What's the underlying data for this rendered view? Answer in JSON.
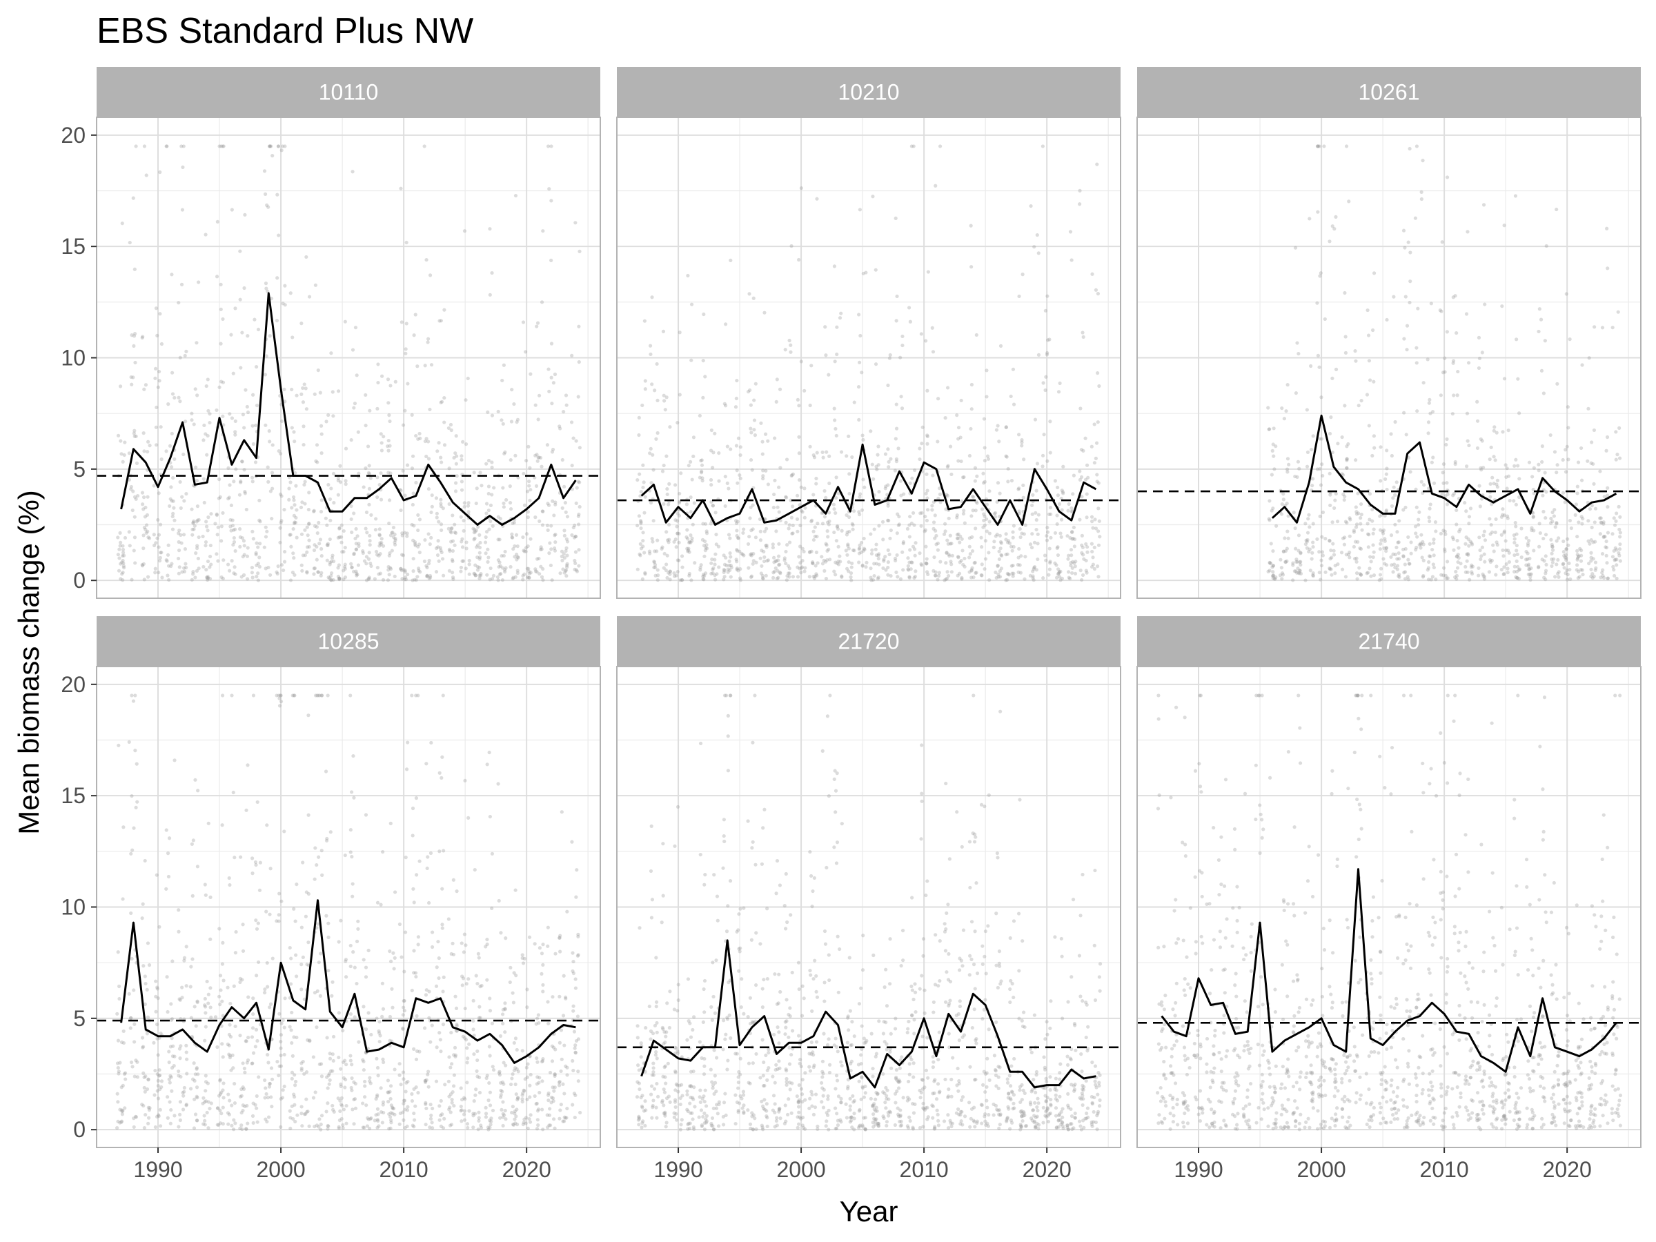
{
  "title": "EBS Standard Plus NW",
  "chart_data": {
    "type": "line",
    "title": "EBS Standard Plus NW",
    "xlabel": "Year",
    "ylabel": "Mean biomass change (%)",
    "xlim": [
      1985,
      2026
    ],
    "ylim": [
      -0.8,
      20.8
    ],
    "x_ticks": [
      1990,
      2000,
      2010,
      2020
    ],
    "y_ticks": [
      0,
      5,
      10,
      15,
      20
    ],
    "grid": true,
    "facet_rows": 2,
    "facet_cols": 3,
    "facets": [
      {
        "name": "10110",
        "mean": 4.7,
        "x": [
          1987,
          1988,
          1989,
          1990,
          1991,
          1992,
          1993,
          1994,
          1995,
          1996,
          1997,
          1998,
          1999,
          2000,
          2001,
          2002,
          2003,
          2004,
          2005,
          2006,
          2007,
          2008,
          2009,
          2010,
          2011,
          2012,
          2013,
          2014,
          2015,
          2016,
          2017,
          2018,
          2019,
          2020,
          2021,
          2022,
          2023,
          2024
        ],
        "y": [
          3.2,
          5.9,
          5.3,
          4.2,
          5.5,
          7.1,
          4.3,
          4.4,
          7.3,
          5.2,
          6.3,
          5.5,
          12.9,
          8.6,
          4.7,
          4.7,
          4.4,
          3.1,
          3.1,
          3.7,
          3.7,
          4.1,
          4.6,
          3.6,
          3.8,
          5.2,
          4.4,
          3.5,
          3.0,
          2.5,
          2.9,
          2.5,
          2.8,
          3.2,
          3.7,
          5.2,
          3.7,
          4.5
        ]
      },
      {
        "name": "10210",
        "mean": 3.6,
        "x": [
          1987,
          1988,
          1989,
          1990,
          1991,
          1992,
          1993,
          1994,
          1995,
          1996,
          1997,
          1998,
          1999,
          2000,
          2001,
          2002,
          2003,
          2004,
          2005,
          2006,
          2007,
          2008,
          2009,
          2010,
          2011,
          2012,
          2013,
          2014,
          2015,
          2016,
          2017,
          2018,
          2019,
          2020,
          2021,
          2022,
          2023,
          2024
        ],
        "y": [
          3.8,
          4.3,
          2.6,
          3.3,
          2.8,
          3.6,
          2.5,
          2.8,
          3.0,
          4.1,
          2.6,
          2.7,
          3.0,
          3.3,
          3.6,
          3.0,
          4.2,
          3.1,
          6.1,
          3.4,
          3.6,
          4.9,
          3.9,
          5.3,
          5.0,
          3.2,
          3.3,
          4.1,
          3.3,
          2.5,
          3.6,
          2.5,
          5.0,
          4.1,
          3.1,
          2.7,
          4.4,
          4.1
        ]
      },
      {
        "name": "10261",
        "mean": 4.0,
        "x": [
          1996,
          1997,
          1998,
          1999,
          2000,
          2001,
          2002,
          2003,
          2004,
          2005,
          2006,
          2007,
          2008,
          2009,
          2010,
          2011,
          2012,
          2013,
          2014,
          2015,
          2016,
          2017,
          2018,
          2019,
          2020,
          2021,
          2022,
          2023,
          2024
        ],
        "y": [
          2.8,
          3.3,
          2.6,
          4.4,
          7.4,
          5.1,
          4.4,
          4.1,
          3.4,
          3.0,
          3.0,
          5.7,
          6.2,
          3.9,
          3.7,
          3.3,
          4.3,
          3.8,
          3.5,
          3.8,
          4.1,
          3.0,
          4.6,
          4.0,
          3.6,
          3.1,
          3.5,
          3.6,
          3.9
        ]
      },
      {
        "name": "10285",
        "mean": 4.9,
        "x": [
          1987,
          1988,
          1989,
          1990,
          1991,
          1992,
          1993,
          1994,
          1995,
          1996,
          1997,
          1998,
          1999,
          2000,
          2001,
          2002,
          2003,
          2004,
          2005,
          2006,
          2007,
          2008,
          2009,
          2010,
          2011,
          2012,
          2013,
          2014,
          2015,
          2016,
          2017,
          2018,
          2019,
          2020,
          2021,
          2022,
          2023,
          2024
        ],
        "y": [
          4.8,
          9.3,
          4.5,
          4.2,
          4.2,
          4.5,
          3.9,
          3.5,
          4.7,
          5.5,
          5.0,
          5.7,
          3.6,
          7.5,
          5.8,
          5.4,
          10.3,
          5.3,
          4.6,
          6.1,
          3.5,
          3.6,
          3.9,
          3.7,
          5.9,
          5.7,
          5.9,
          4.6,
          4.4,
          4.0,
          4.3,
          3.8,
          3.0,
          3.3,
          3.7,
          4.3,
          4.7,
          4.6
        ]
      },
      {
        "name": "21720",
        "mean": 3.7,
        "x": [
          1987,
          1988,
          1989,
          1990,
          1991,
          1992,
          1993,
          1994,
          1995,
          1996,
          1997,
          1998,
          1999,
          2000,
          2001,
          2002,
          2003,
          2004,
          2005,
          2006,
          2007,
          2008,
          2009,
          2010,
          2011,
          2012,
          2013,
          2014,
          2015,
          2016,
          2017,
          2018,
          2019,
          2020,
          2021,
          2022,
          2023,
          2024
        ],
        "y": [
          2.4,
          4.0,
          3.6,
          3.2,
          3.1,
          3.7,
          3.7,
          8.5,
          3.8,
          4.6,
          5.1,
          3.4,
          3.9,
          3.9,
          4.2,
          5.3,
          4.7,
          2.3,
          2.6,
          1.9,
          3.4,
          2.9,
          3.5,
          5.0,
          3.3,
          5.2,
          4.4,
          6.1,
          5.6,
          4.2,
          2.6,
          2.6,
          1.9,
          2.0,
          2.0,
          2.7,
          2.3,
          2.4
        ]
      },
      {
        "name": "21740",
        "mean": 4.8,
        "x": [
          1987,
          1988,
          1989,
          1990,
          1991,
          1992,
          1993,
          1994,
          1995,
          1996,
          1997,
          1998,
          1999,
          2000,
          2001,
          2002,
          2003,
          2004,
          2005,
          2006,
          2007,
          2008,
          2009,
          2010,
          2011,
          2012,
          2013,
          2014,
          2015,
          2016,
          2017,
          2018,
          2019,
          2020,
          2021,
          2022,
          2023,
          2024
        ],
        "y": [
          5.1,
          4.4,
          4.2,
          6.8,
          5.6,
          5.7,
          4.3,
          4.4,
          9.3,
          3.5,
          4.0,
          4.3,
          4.6,
          5.0,
          3.8,
          3.5,
          11.7,
          4.1,
          3.8,
          4.4,
          4.9,
          5.1,
          5.7,
          5.2,
          4.4,
          4.3,
          3.3,
          3.0,
          2.6,
          4.6,
          3.3,
          5.9,
          3.7,
          3.5,
          3.3,
          3.6,
          4.1,
          4.8
        ]
      }
    ]
  }
}
